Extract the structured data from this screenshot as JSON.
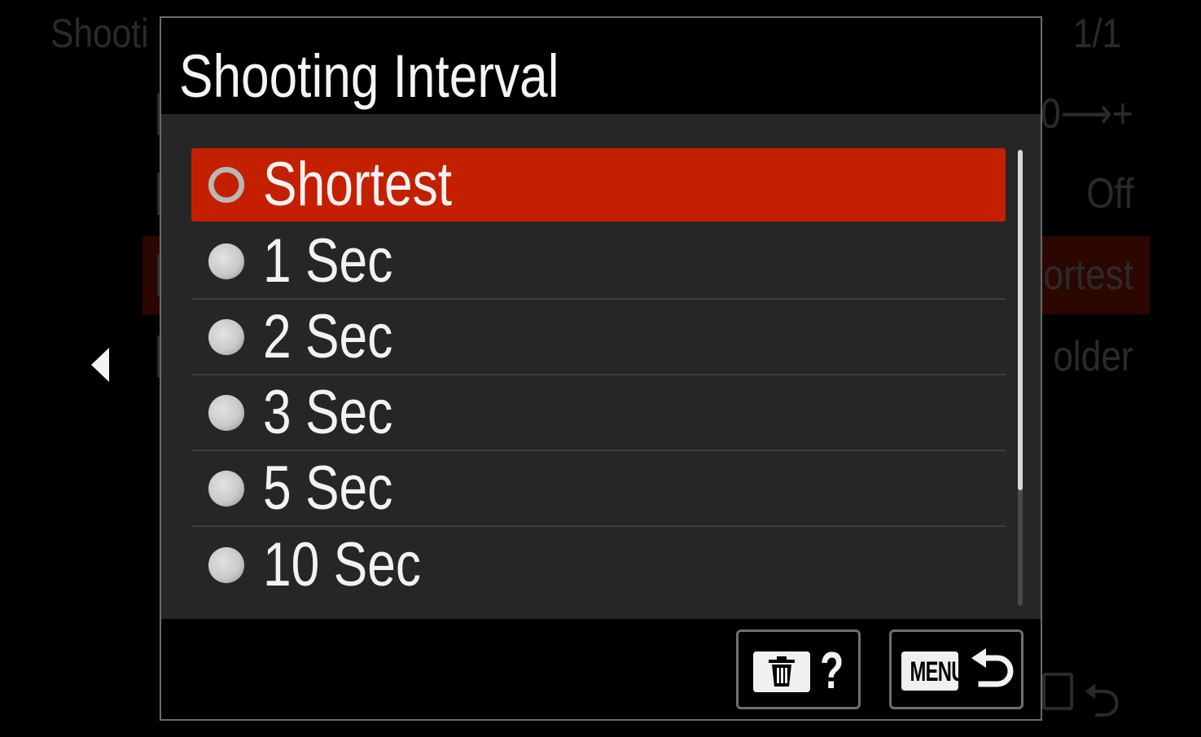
{
  "background_menu": {
    "title": "Shooti",
    "page_indicator": "1/1",
    "values": [
      "0⟶+",
      "Off",
      "ortest",
      "older"
    ]
  },
  "dialog": {
    "title": "Shooting Interval",
    "options": [
      {
        "label": "Shortest",
        "selected": true
      },
      {
        "label": "1 Sec",
        "selected": false
      },
      {
        "label": "2 Sec",
        "selected": false
      },
      {
        "label": "3 Sec",
        "selected": false
      },
      {
        "label": "5 Sec",
        "selected": false
      },
      {
        "label": "10 Sec",
        "selected": false
      }
    ],
    "footer": {
      "help_label": "?",
      "menu_label": "MENU"
    }
  },
  "colors": {
    "accent": "#c42000",
    "panel": "#262626",
    "text": "#f2f2f2"
  },
  "icons": {
    "left_arrow": "triangle-left-icon",
    "trash": "trash-icon",
    "return": "return-arrow-icon"
  }
}
